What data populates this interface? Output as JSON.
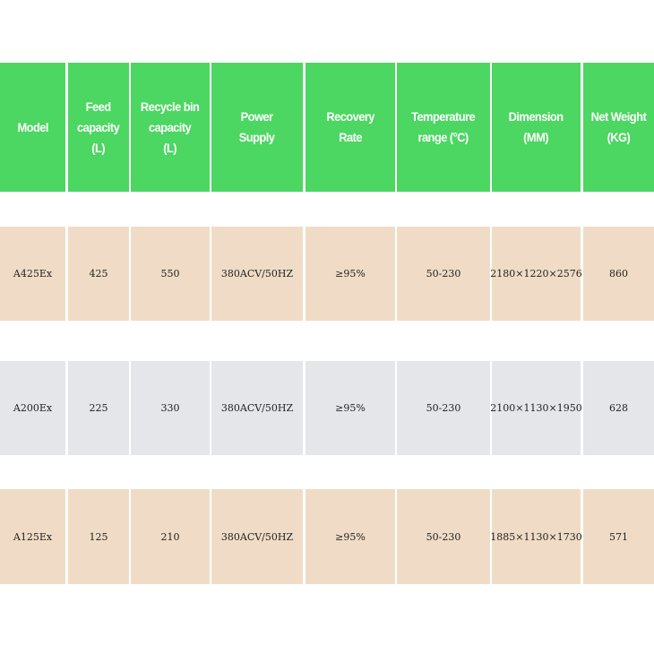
{
  "header": [
    "Model",
    "Feed\ncapacity\n(L)",
    "Recycle bin\ncapacity\n(L)",
    "Power\nSupply",
    "Recovery\nRate",
    "Temperature\nrange (°C)",
    "Dimension\n(MM)",
    "Net Weight\n(KG)"
  ],
  "rows": [
    [
      "A425Ex",
      "425",
      "550",
      "380ACV/50HZ",
      "≥95%",
      "50-230",
      "2180×1220×2576",
      "860"
    ],
    [
      "A200Ex",
      "225",
      "330",
      "380ACV/50HZ",
      "≥95%",
      "50-230",
      "2100×1130×1950",
      "628"
    ],
    [
      "A125Ex",
      "125",
      "210",
      "380ACV/50HZ",
      "≥95%",
      "50-230",
      "1885×1130×1730",
      "571"
    ]
  ],
  "colors": {
    "header_bg": "#4cd662",
    "row_tan": "#f0dcc6",
    "row_gray": "#e4e6ea"
  }
}
